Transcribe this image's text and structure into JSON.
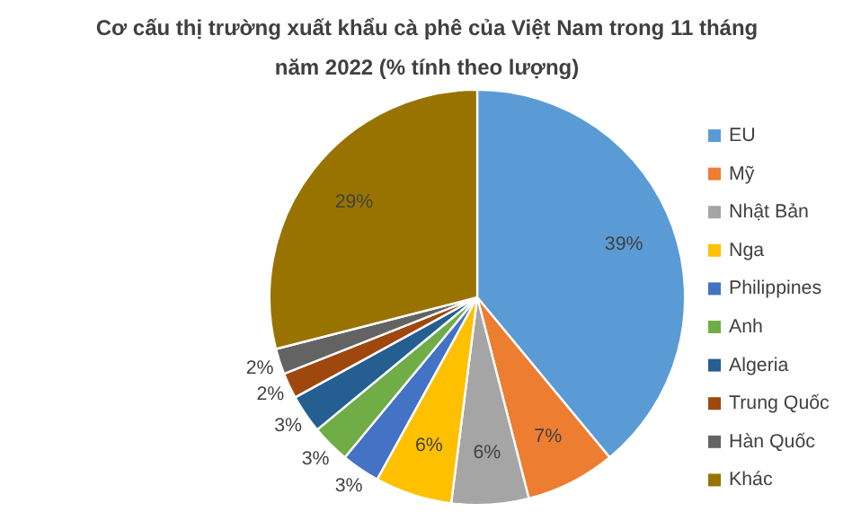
{
  "chart_data": {
    "type": "pie",
    "title": "Cơ cấu thị trường xuất khẩu cà phê của Việt Nam trong 11 tháng năm 2022 (% tính theo lượng)",
    "categories": [
      "EU",
      "Mỹ",
      "Nhật Bản",
      "Nga",
      "Philippines",
      "Anh",
      "Algeria",
      "Trung Quốc",
      "Hàn Quốc",
      "Khác"
    ],
    "values": [
      39,
      7,
      6,
      6,
      3,
      3,
      3,
      2,
      2,
      29
    ],
    "colors": [
      "#5b9bd5",
      "#ed7d31",
      "#a5a5a5",
      "#ffc000",
      "#4472c4",
      "#70ad47",
      "#255e91",
      "#9e480e",
      "#636363",
      "#997300"
    ],
    "value_labels": [
      "39%",
      "7%",
      "6%",
      "6%",
      "3%",
      "3%",
      "3%",
      "2%",
      "2%",
      "29%"
    ],
    "legend": "right"
  }
}
